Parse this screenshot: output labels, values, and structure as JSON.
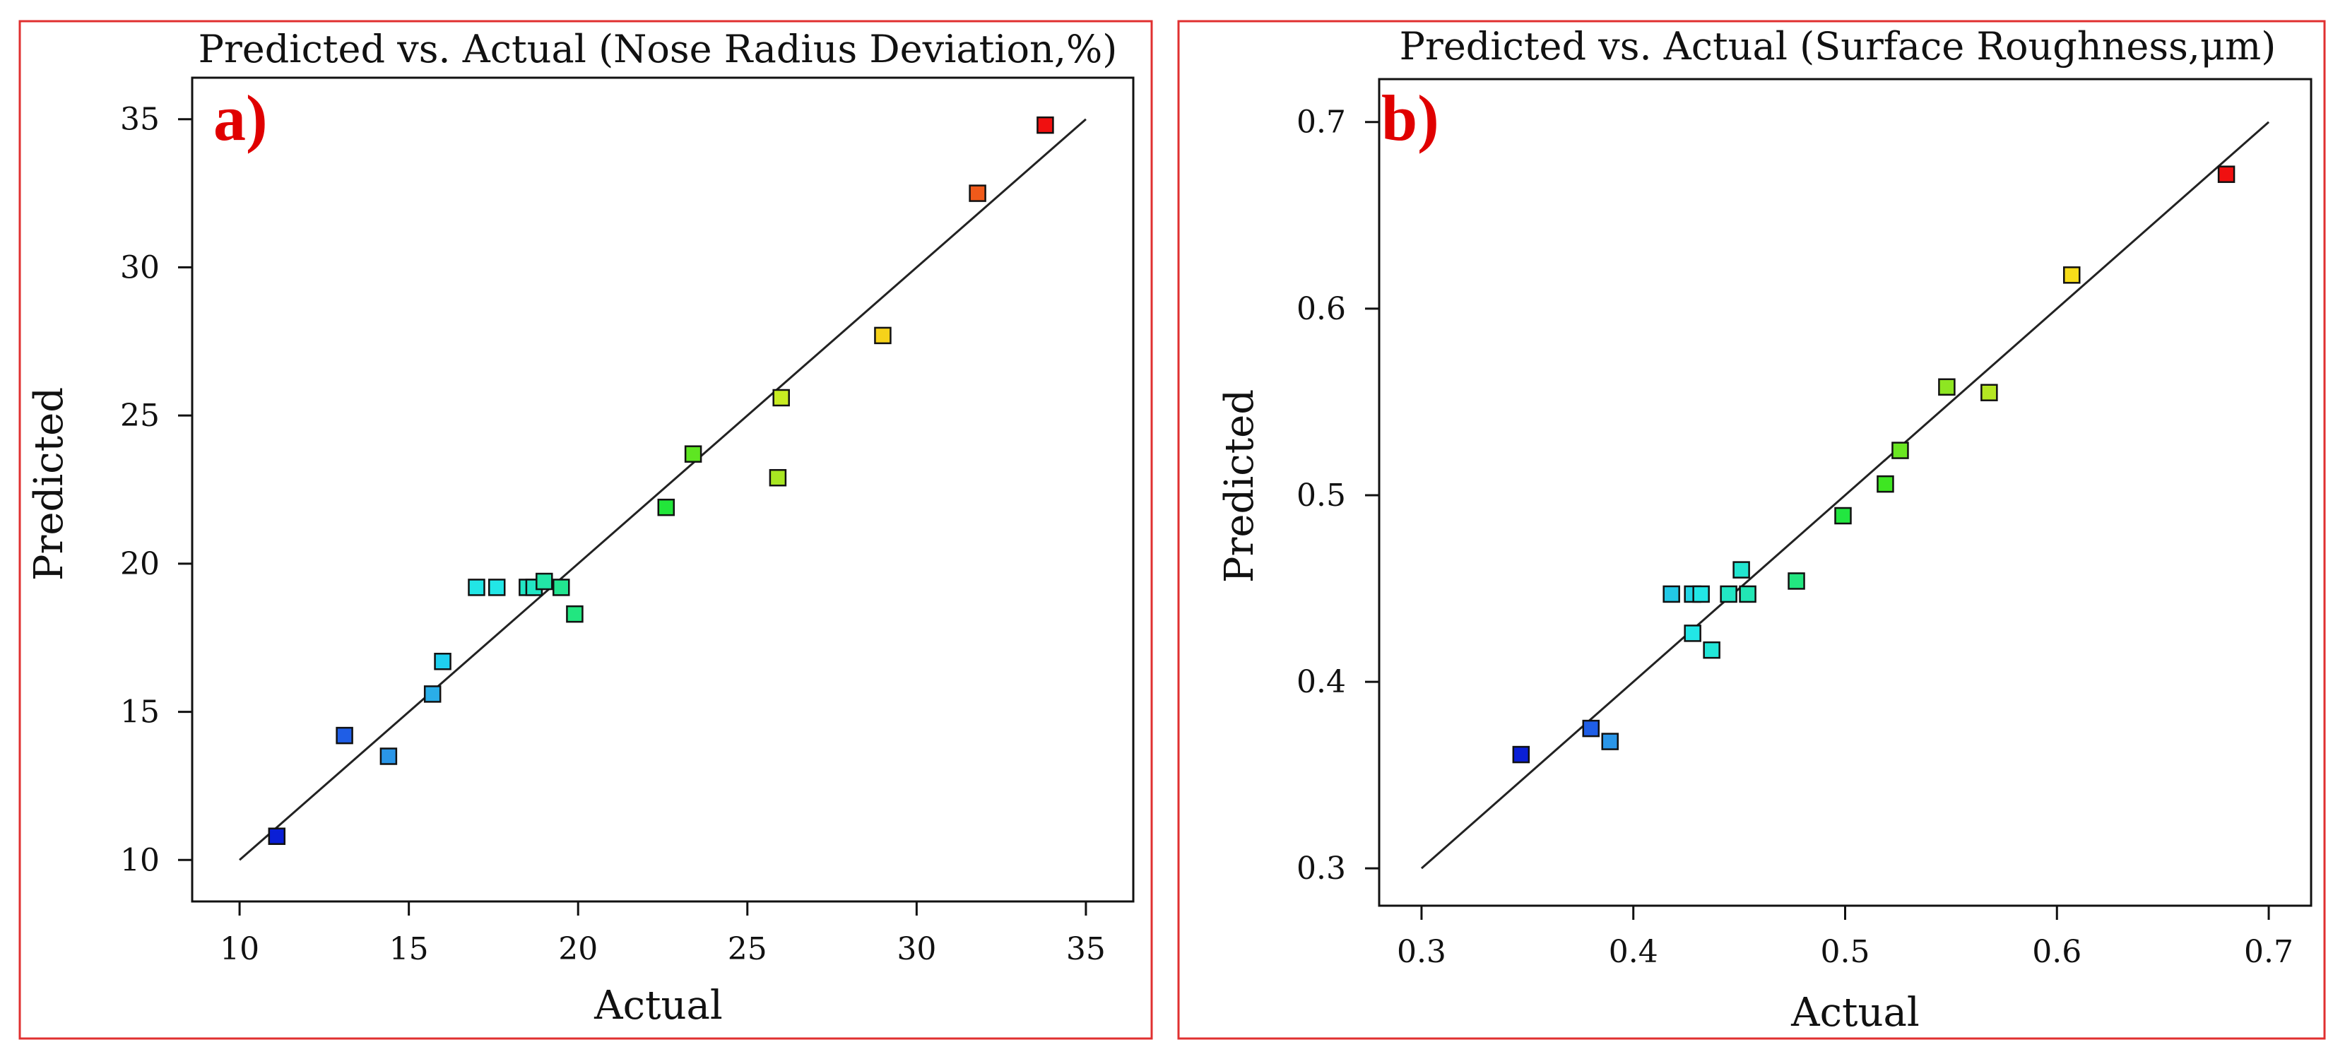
{
  "chart_data": [
    {
      "type": "scatter",
      "panel_label": "a)",
      "title": "Predicted vs. Actual (Nose Radius Deviation,%)",
      "xlabel": "Actual",
      "ylabel": "Predicted",
      "xlim": [
        8.6,
        36.4
      ],
      "ylim": [
        8.6,
        36.4
      ],
      "xticks": [
        "10",
        "15",
        "20",
        "25",
        "30",
        "35"
      ],
      "yticks": [
        "10",
        "15",
        "20",
        "25",
        "30",
        "35"
      ],
      "diagonal": [
        10,
        35
      ],
      "points": [
        {
          "x": 11.1,
          "y": 10.8,
          "color": "#0a1fd6"
        },
        {
          "x": 13.1,
          "y": 14.2,
          "color": "#1f5ee6"
        },
        {
          "x": 14.4,
          "y": 13.5,
          "color": "#2a96e8"
        },
        {
          "x": 15.7,
          "y": 15.6,
          "color": "#2aaee8"
        },
        {
          "x": 16.0,
          "y": 16.7,
          "color": "#1fd0ef"
        },
        {
          "x": 17.0,
          "y": 19.2,
          "color": "#22e6e6"
        },
        {
          "x": 17.6,
          "y": 19.2,
          "color": "#22e6e6"
        },
        {
          "x": 18.5,
          "y": 19.2,
          "color": "#22e6c4"
        },
        {
          "x": 18.7,
          "y": 19.2,
          "color": "#22e6c4"
        },
        {
          "x": 19.0,
          "y": 19.4,
          "color": "#22e6a6"
        },
        {
          "x": 19.5,
          "y": 19.2,
          "color": "#22e690"
        },
        {
          "x": 19.9,
          "y": 18.3,
          "color": "#22e680"
        },
        {
          "x": 22.6,
          "y": 21.9,
          "color": "#22e63a"
        },
        {
          "x": 23.4,
          "y": 23.7,
          "color": "#5ee622"
        },
        {
          "x": 25.9,
          "y": 22.9,
          "color": "#a8e622"
        },
        {
          "x": 26.0,
          "y": 25.6,
          "color": "#c8ec22"
        },
        {
          "x": 29.0,
          "y": 27.7,
          "color": "#f6d21a"
        },
        {
          "x": 31.8,
          "y": 32.5,
          "color": "#f05a1a"
        },
        {
          "x": 33.8,
          "y": 34.8,
          "color": "#f01010"
        }
      ]
    },
    {
      "type": "scatter",
      "panel_label": "b)",
      "title": "Predicted vs. Actual (Surface Roughness,μm)",
      "xlabel": "Actual",
      "ylabel": "Predicted",
      "xlim": [
        0.28,
        0.72
      ],
      "ylim": [
        0.28,
        0.723
      ],
      "xticks": [
        "0.3",
        "0.4",
        "0.5",
        "0.6",
        "0.7"
      ],
      "yticks": [
        "0.3",
        "0.4",
        "0.5",
        "0.6",
        "0.7"
      ],
      "diagonal": [
        0.3,
        0.7
      ],
      "points": [
        {
          "x": 0.347,
          "y": 0.361,
          "color": "#0a1fd6"
        },
        {
          "x": 0.38,
          "y": 0.375,
          "color": "#1f5ee6"
        },
        {
          "x": 0.389,
          "y": 0.368,
          "color": "#2a96e8"
        },
        {
          "x": 0.418,
          "y": 0.447,
          "color": "#22c8e6"
        },
        {
          "x": 0.428,
          "y": 0.447,
          "color": "#22d6e6"
        },
        {
          "x": 0.432,
          "y": 0.447,
          "color": "#22e6e6"
        },
        {
          "x": 0.428,
          "y": 0.426,
          "color": "#22e6e6"
        },
        {
          "x": 0.437,
          "y": 0.417,
          "color": "#22e6d8"
        },
        {
          "x": 0.445,
          "y": 0.447,
          "color": "#22e6c4"
        },
        {
          "x": 0.451,
          "y": 0.46,
          "color": "#22e6d0"
        },
        {
          "x": 0.454,
          "y": 0.447,
          "color": "#22e6b4"
        },
        {
          "x": 0.477,
          "y": 0.454,
          "color": "#22e680"
        },
        {
          "x": 0.499,
          "y": 0.489,
          "color": "#22e640"
        },
        {
          "x": 0.519,
          "y": 0.506,
          "color": "#3ee622"
        },
        {
          "x": 0.526,
          "y": 0.524,
          "color": "#6ae622"
        },
        {
          "x": 0.548,
          "y": 0.558,
          "color": "#8ee622"
        },
        {
          "x": 0.568,
          "y": 0.555,
          "color": "#b4e622"
        },
        {
          "x": 0.607,
          "y": 0.618,
          "color": "#f6dc1a"
        },
        {
          "x": 0.68,
          "y": 0.672,
          "color": "#f01010"
        }
      ]
    }
  ]
}
